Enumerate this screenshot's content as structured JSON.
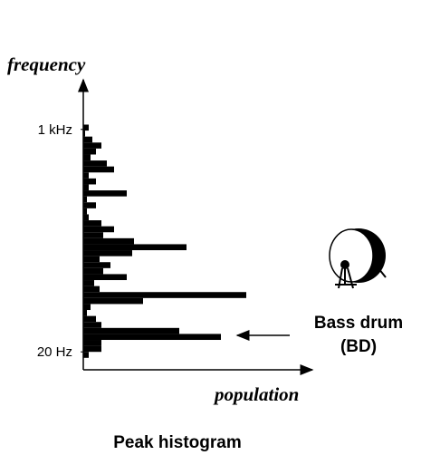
{
  "chart_data": {
    "type": "histogram",
    "orientation": "horizontal",
    "title": "Peak histogram",
    "y_label": "frequency",
    "x_label": "population",
    "bins": [
      0,
      1,
      2,
      3,
      4,
      5,
      6,
      7,
      8,
      9,
      10,
      11,
      12,
      13,
      14,
      15,
      16,
      17,
      18,
      19,
      20,
      21,
      22,
      23,
      24,
      25,
      26,
      27,
      28,
      29,
      30,
      31,
      32,
      33,
      34,
      35,
      36,
      37,
      38,
      39
    ],
    "values": [
      6,
      20,
      20,
      152,
      106,
      20,
      14,
      4,
      8,
      66,
      180,
      18,
      12,
      48,
      22,
      30,
      18,
      54,
      114,
      56,
      22,
      34,
      20,
      6,
      4,
      14,
      4,
      48,
      6,
      14,
      6,
      34,
      26,
      8,
      14,
      20,
      10,
      2,
      6
    ],
    "color": "#000000",
    "xlim": [
      0,
      253
    ],
    "ylim": [
      -2,
      46.5
    ],
    "yticks": [
      {
        "value": 38.2,
        "label": "1 kHz"
      },
      {
        "value": 1,
        "label": "20 Hz"
      }
    ],
    "annotations": [
      "Bass drum",
      "(BD)"
    ]
  }
}
